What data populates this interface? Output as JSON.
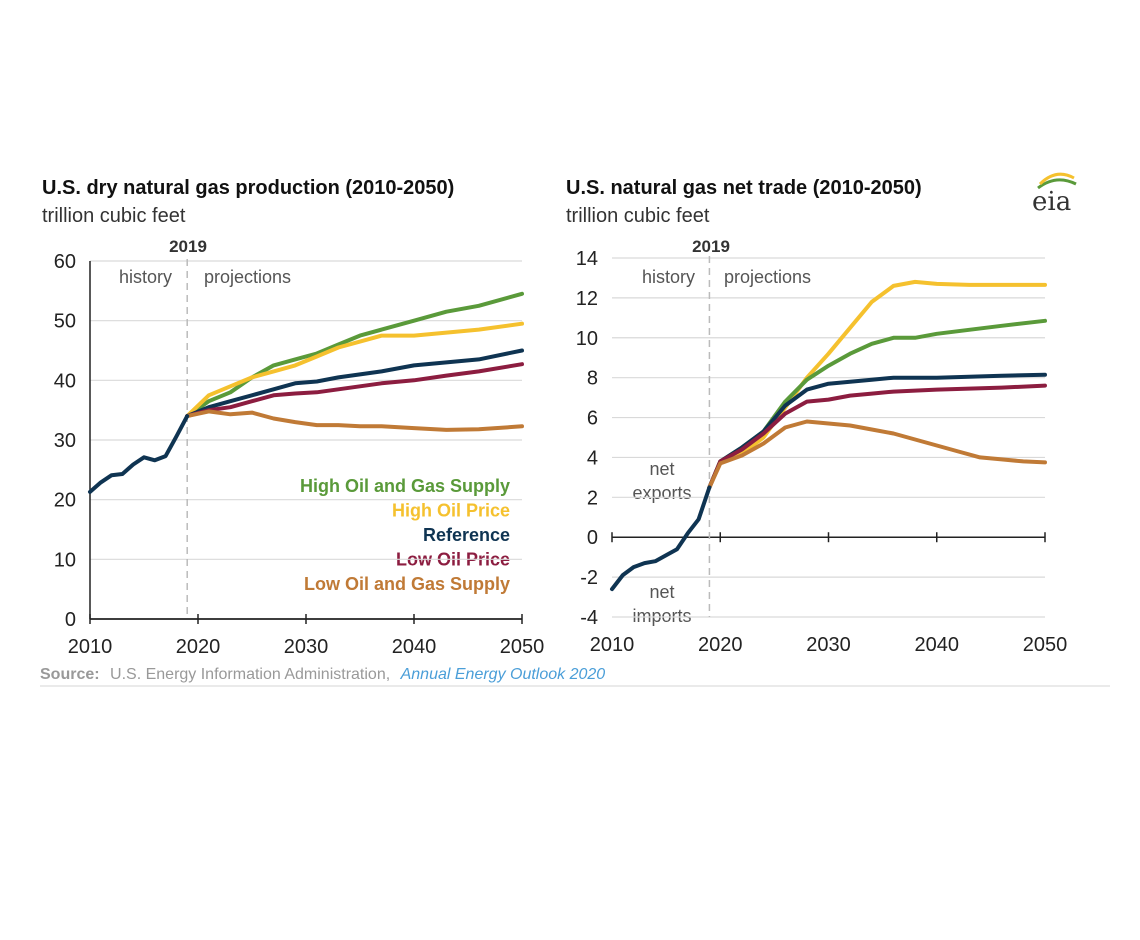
{
  "colors": {
    "high_oil_gas_supply": "#5a9a3a",
    "high_oil_price": "#f5c12e",
    "reference": "#0f3452",
    "low_oil_price": "#8c1d40",
    "low_oil_gas_supply": "#c07a36",
    "grid": "#d9d9d9",
    "divider": "#bbbbbb",
    "axis": "#222222"
  },
  "logo": {
    "text": "eia",
    "icon": "eia-logo-icon"
  },
  "source": {
    "label": "Source:",
    "text": "U.S. Energy Information Administration,",
    "link_text": "Annual Energy Outlook 2020"
  },
  "chart_data": [
    {
      "type": "line",
      "title": "U.S. dry natural gas production (2010-2050)",
      "subtitle": "trillion cubic feet",
      "xlim": [
        2010,
        2050
      ],
      "ylim": [
        0,
        60
      ],
      "xticks": [
        "2010",
        "2020",
        "2030",
        "2040",
        "2050"
      ],
      "yticks": [
        "0",
        "10",
        "20",
        "30",
        "40",
        "50",
        "60"
      ],
      "grid": true,
      "divider_year": "2019",
      "annotations": {
        "history": "history",
        "projections": "projections"
      },
      "legend_position": "lower-right",
      "series": [
        {
          "name": "High Oil and Gas Supply",
          "key": "high_oil_gas_supply",
          "x": [
            2019,
            2021,
            2023,
            2025,
            2027,
            2029,
            2031,
            2033,
            2035,
            2037,
            2040,
            2043,
            2046,
            2050
          ],
          "y": [
            34,
            36.5,
            38,
            40.5,
            42.5,
            43.5,
            44.5,
            46,
            47.5,
            48.5,
            50,
            51.5,
            52.5,
            54.5
          ]
        },
        {
          "name": "High Oil Price",
          "key": "high_oil_price",
          "x": [
            2019,
            2021,
            2023,
            2025,
            2027,
            2029,
            2031,
            2033,
            2035,
            2037,
            2040,
            2043,
            2046,
            2050
          ],
          "y": [
            34,
            37.5,
            39,
            40.5,
            41.5,
            42.5,
            44,
            45.5,
            46.5,
            47.5,
            47.5,
            48,
            48.5,
            49.5
          ]
        },
        {
          "name": "Reference",
          "key": "reference",
          "x": [
            2019,
            2021,
            2023,
            2025,
            2027,
            2029,
            2031,
            2033,
            2035,
            2037,
            2040,
            2043,
            2046,
            2050
          ],
          "y": [
            34,
            35.5,
            36.5,
            37.5,
            38.5,
            39.5,
            39.8,
            40.5,
            41,
            41.5,
            42.5,
            43,
            43.5,
            45
          ]
        },
        {
          "name": "Low Oil Price",
          "key": "low_oil_price",
          "x": [
            2019,
            2021,
            2023,
            2025,
            2027,
            2029,
            2031,
            2033,
            2035,
            2037,
            2040,
            2043,
            2046,
            2050
          ],
          "y": [
            34,
            35,
            35.5,
            36.5,
            37.5,
            37.8,
            38,
            38.5,
            39,
            39.5,
            40,
            40.8,
            41.5,
            42.7
          ]
        },
        {
          "name": "Low Oil and Gas Supply",
          "key": "low_oil_gas_supply",
          "x": [
            2019,
            2021,
            2023,
            2025,
            2027,
            2029,
            2031,
            2033,
            2035,
            2037,
            2040,
            2043,
            2046,
            2050
          ],
          "y": [
            34,
            34.8,
            34.3,
            34.6,
            33.6,
            33,
            32.5,
            32.5,
            32.3,
            32.3,
            32,
            31.7,
            31.8,
            32.3
          ]
        },
        {
          "name": "",
          "key": "reference",
          "history": true,
          "x": [
            2010,
            2011,
            2012,
            2013,
            2014,
            2015,
            2016,
            2017,
            2018,
            2019
          ],
          "y": [
            21.3,
            22.9,
            24.1,
            24.3,
            25.9,
            27.1,
            26.6,
            27.3,
            30.6,
            34
          ]
        }
      ]
    },
    {
      "type": "line",
      "title": "U.S. natural gas net trade (2010-2050)",
      "subtitle": "trillion cubic feet",
      "xlim": [
        2010,
        2050
      ],
      "ylim": [
        -4,
        14
      ],
      "xticks": [
        "2010",
        "2020",
        "2030",
        "2040",
        "2050"
      ],
      "yticks": [
        "-4",
        "-2",
        "0",
        "2",
        "4",
        "6",
        "8",
        "10",
        "12",
        "14"
      ],
      "grid": true,
      "divider_year": "2019",
      "annotations": {
        "history": "history",
        "projections": "projections",
        "net_exports": [
          "net",
          "exports"
        ],
        "net_imports": [
          "net",
          "imports"
        ]
      },
      "series": [
        {
          "name": "High Oil Price",
          "key": "high_oil_price",
          "x": [
            2019,
            2020,
            2022,
            2024,
            2026,
            2028,
            2030,
            2032,
            2034,
            2036,
            2038,
            2040,
            2043,
            2046,
            2050
          ],
          "y": [
            2.5,
            3.8,
            4.2,
            5.0,
            6.5,
            8.0,
            9.2,
            10.5,
            11.8,
            12.6,
            12.8,
            12.7,
            12.65,
            12.65,
            12.65
          ]
        },
        {
          "name": "High Oil and Gas Supply",
          "key": "high_oil_gas_supply",
          "x": [
            2019,
            2020,
            2022,
            2024,
            2026,
            2028,
            2030,
            2032,
            2034,
            2036,
            2038,
            2040,
            2043,
            2046,
            2050
          ],
          "y": [
            2.5,
            3.8,
            4.5,
            5.3,
            6.8,
            7.9,
            8.6,
            9.2,
            9.7,
            10.0,
            10.0,
            10.2,
            10.4,
            10.6,
            10.85
          ]
        },
        {
          "name": "Reference",
          "key": "reference",
          "x": [
            2019,
            2020,
            2022,
            2024,
            2026,
            2028,
            2030,
            2032,
            2034,
            2036,
            2038,
            2040,
            2043,
            2046,
            2050
          ],
          "y": [
            2.5,
            3.8,
            4.5,
            5.3,
            6.6,
            7.4,
            7.7,
            7.8,
            7.9,
            8.0,
            8.0,
            8.0,
            8.05,
            8.1,
            8.15
          ]
        },
        {
          "name": "Low Oil Price",
          "key": "low_oil_price",
          "x": [
            2019,
            2020,
            2022,
            2024,
            2026,
            2028,
            2030,
            2032,
            2034,
            2036,
            2038,
            2040,
            2043,
            2046,
            2050
          ],
          "y": [
            2.5,
            3.8,
            4.4,
            5.2,
            6.2,
            6.8,
            6.9,
            7.1,
            7.2,
            7.3,
            7.35,
            7.4,
            7.45,
            7.5,
            7.6
          ]
        },
        {
          "name": "Low Oil and Gas Supply",
          "key": "low_oil_gas_supply",
          "x": [
            2019,
            2020,
            2022,
            2024,
            2026,
            2028,
            2030,
            2032,
            2034,
            2036,
            2038,
            2040,
            2042,
            2044,
            2046,
            2048,
            2050
          ],
          "y": [
            2.5,
            3.7,
            4.1,
            4.7,
            5.5,
            5.8,
            5.7,
            5.6,
            5.4,
            5.2,
            4.9,
            4.6,
            4.3,
            4.0,
            3.9,
            3.8,
            3.75
          ]
        },
        {
          "name": "",
          "key": "reference",
          "history": true,
          "x": [
            2010,
            2011,
            2012,
            2013,
            2014,
            2015,
            2016,
            2017,
            2018,
            2019
          ],
          "y": [
            -2.6,
            -1.9,
            -1.5,
            -1.3,
            -1.2,
            -0.9,
            -0.6,
            0.2,
            0.9,
            2.5
          ]
        }
      ]
    }
  ]
}
